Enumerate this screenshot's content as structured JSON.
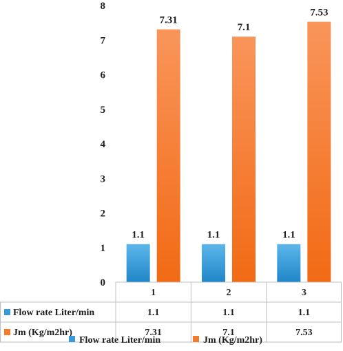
{
  "chart_data": {
    "type": "bar",
    "title": "",
    "xlabel": "",
    "ylabel": "",
    "ylim": [
      0,
      8
    ],
    "yticks": [
      0,
      1,
      2,
      3,
      4,
      5,
      6,
      7,
      8
    ],
    "categories": [
      "1",
      "2",
      "3"
    ],
    "grid": false,
    "legend": "bottom",
    "data_table": true,
    "series": [
      {
        "name": "Flow rate Liter/min",
        "values": [
          1.1,
          1.1,
          1.1
        ],
        "labels": [
          "1.1",
          "1.1",
          "1.1"
        ],
        "color": "#3a9ad6"
      },
      {
        "name": "Jm (Kg/m2hr)",
        "values": [
          7.31,
          7.1,
          7.53
        ],
        "labels": [
          "7.31",
          "7.1",
          "7.53"
        ],
        "color": "#f47b2a"
      }
    ]
  }
}
